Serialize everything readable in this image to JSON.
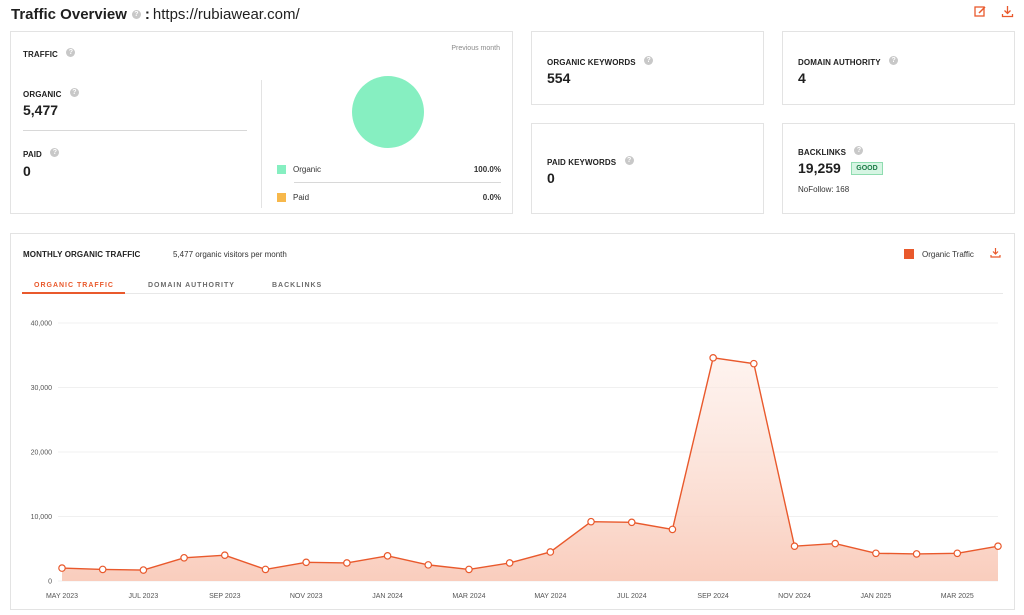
{
  "header": {
    "title": "Traffic Overview",
    "colon": ":",
    "domain": "https://rubiawear.com/",
    "help_icon": "help-icon",
    "edit_icon": "edit-icon",
    "download_icon": "download-icon"
  },
  "traffic": {
    "label": "TRAFFIC",
    "period": "Previous month",
    "organic_label": "ORGANIC",
    "organic_value": "5,477",
    "paid_label": "PAID",
    "paid_value": "0",
    "legend": [
      {
        "name": "Organic",
        "pct": "100.0%",
        "color": "#86efc1"
      },
      {
        "name": "Paid",
        "pct": "0.0%",
        "color": "#f7b84b"
      }
    ],
    "pie_organic_fraction": 1.0
  },
  "organic_keywords": {
    "label": "ORGANIC KEYWORDS",
    "value": "554"
  },
  "paid_keywords": {
    "label": "PAID KEYWORDS",
    "value": "0"
  },
  "domain_authority": {
    "label": "DOMAIN AUTHORITY",
    "value": "4"
  },
  "backlinks": {
    "label": "BACKLINKS",
    "value": "19,259",
    "badge": "GOOD",
    "nofollow": "NoFollow: 168"
  },
  "monthly": {
    "label": "MONTHLY ORGANIC TRAFFIC",
    "subtitle": "5,477 organic visitors per month",
    "legend": "Organic Traffic",
    "tabs": [
      "ORGANIC TRAFFIC",
      "DOMAIN AUTHORITY",
      "BACKLINKS"
    ]
  },
  "colors": {
    "accent": "#e9592c",
    "fill": "#fbd9cd"
  },
  "chart_data": {
    "type": "area",
    "series": [
      {
        "name": "Organic Traffic",
        "values": [
          2000,
          1800,
          1700,
          3600,
          4000,
          1800,
          2900,
          2800,
          3900,
          2500,
          1800,
          2800,
          4500,
          9200,
          9100,
          8000,
          34600,
          33700,
          5400,
          5800,
          4300,
          4200,
          4300,
          5400
        ]
      }
    ],
    "x": [
      "MAY 2023",
      "JUN 2023",
      "JUL 2023",
      "AUG 2023",
      "SEP 2023",
      "OCT 2023",
      "NOV 2023",
      "DEC 2023",
      "JAN 2024",
      "FEB 2024",
      "MAR 2024",
      "APR 2024",
      "MAY 2024",
      "JUN 2024",
      "JUL 2024",
      "AUG 2024",
      "SEP 2024",
      "OCT 2024",
      "NOV 2024",
      "DEC 2024",
      "JAN 2025",
      "FEB 2025",
      "MAR 2025",
      "APR 2025"
    ],
    "x_tick_labels": [
      "MAY 2023",
      "JUL 2023",
      "SEP 2023",
      "NOV 2023",
      "JAN 2024",
      "MAR 2024",
      "MAY 2024",
      "JUL 2024",
      "SEP 2024",
      "NOV 2024",
      "JAN 2025",
      "MAR 2025"
    ],
    "y_ticks": [
      "0",
      "10,000",
      "20,000",
      "30,000",
      "40,000"
    ],
    "ylim": [
      0,
      40000
    ],
    "grid": true
  }
}
